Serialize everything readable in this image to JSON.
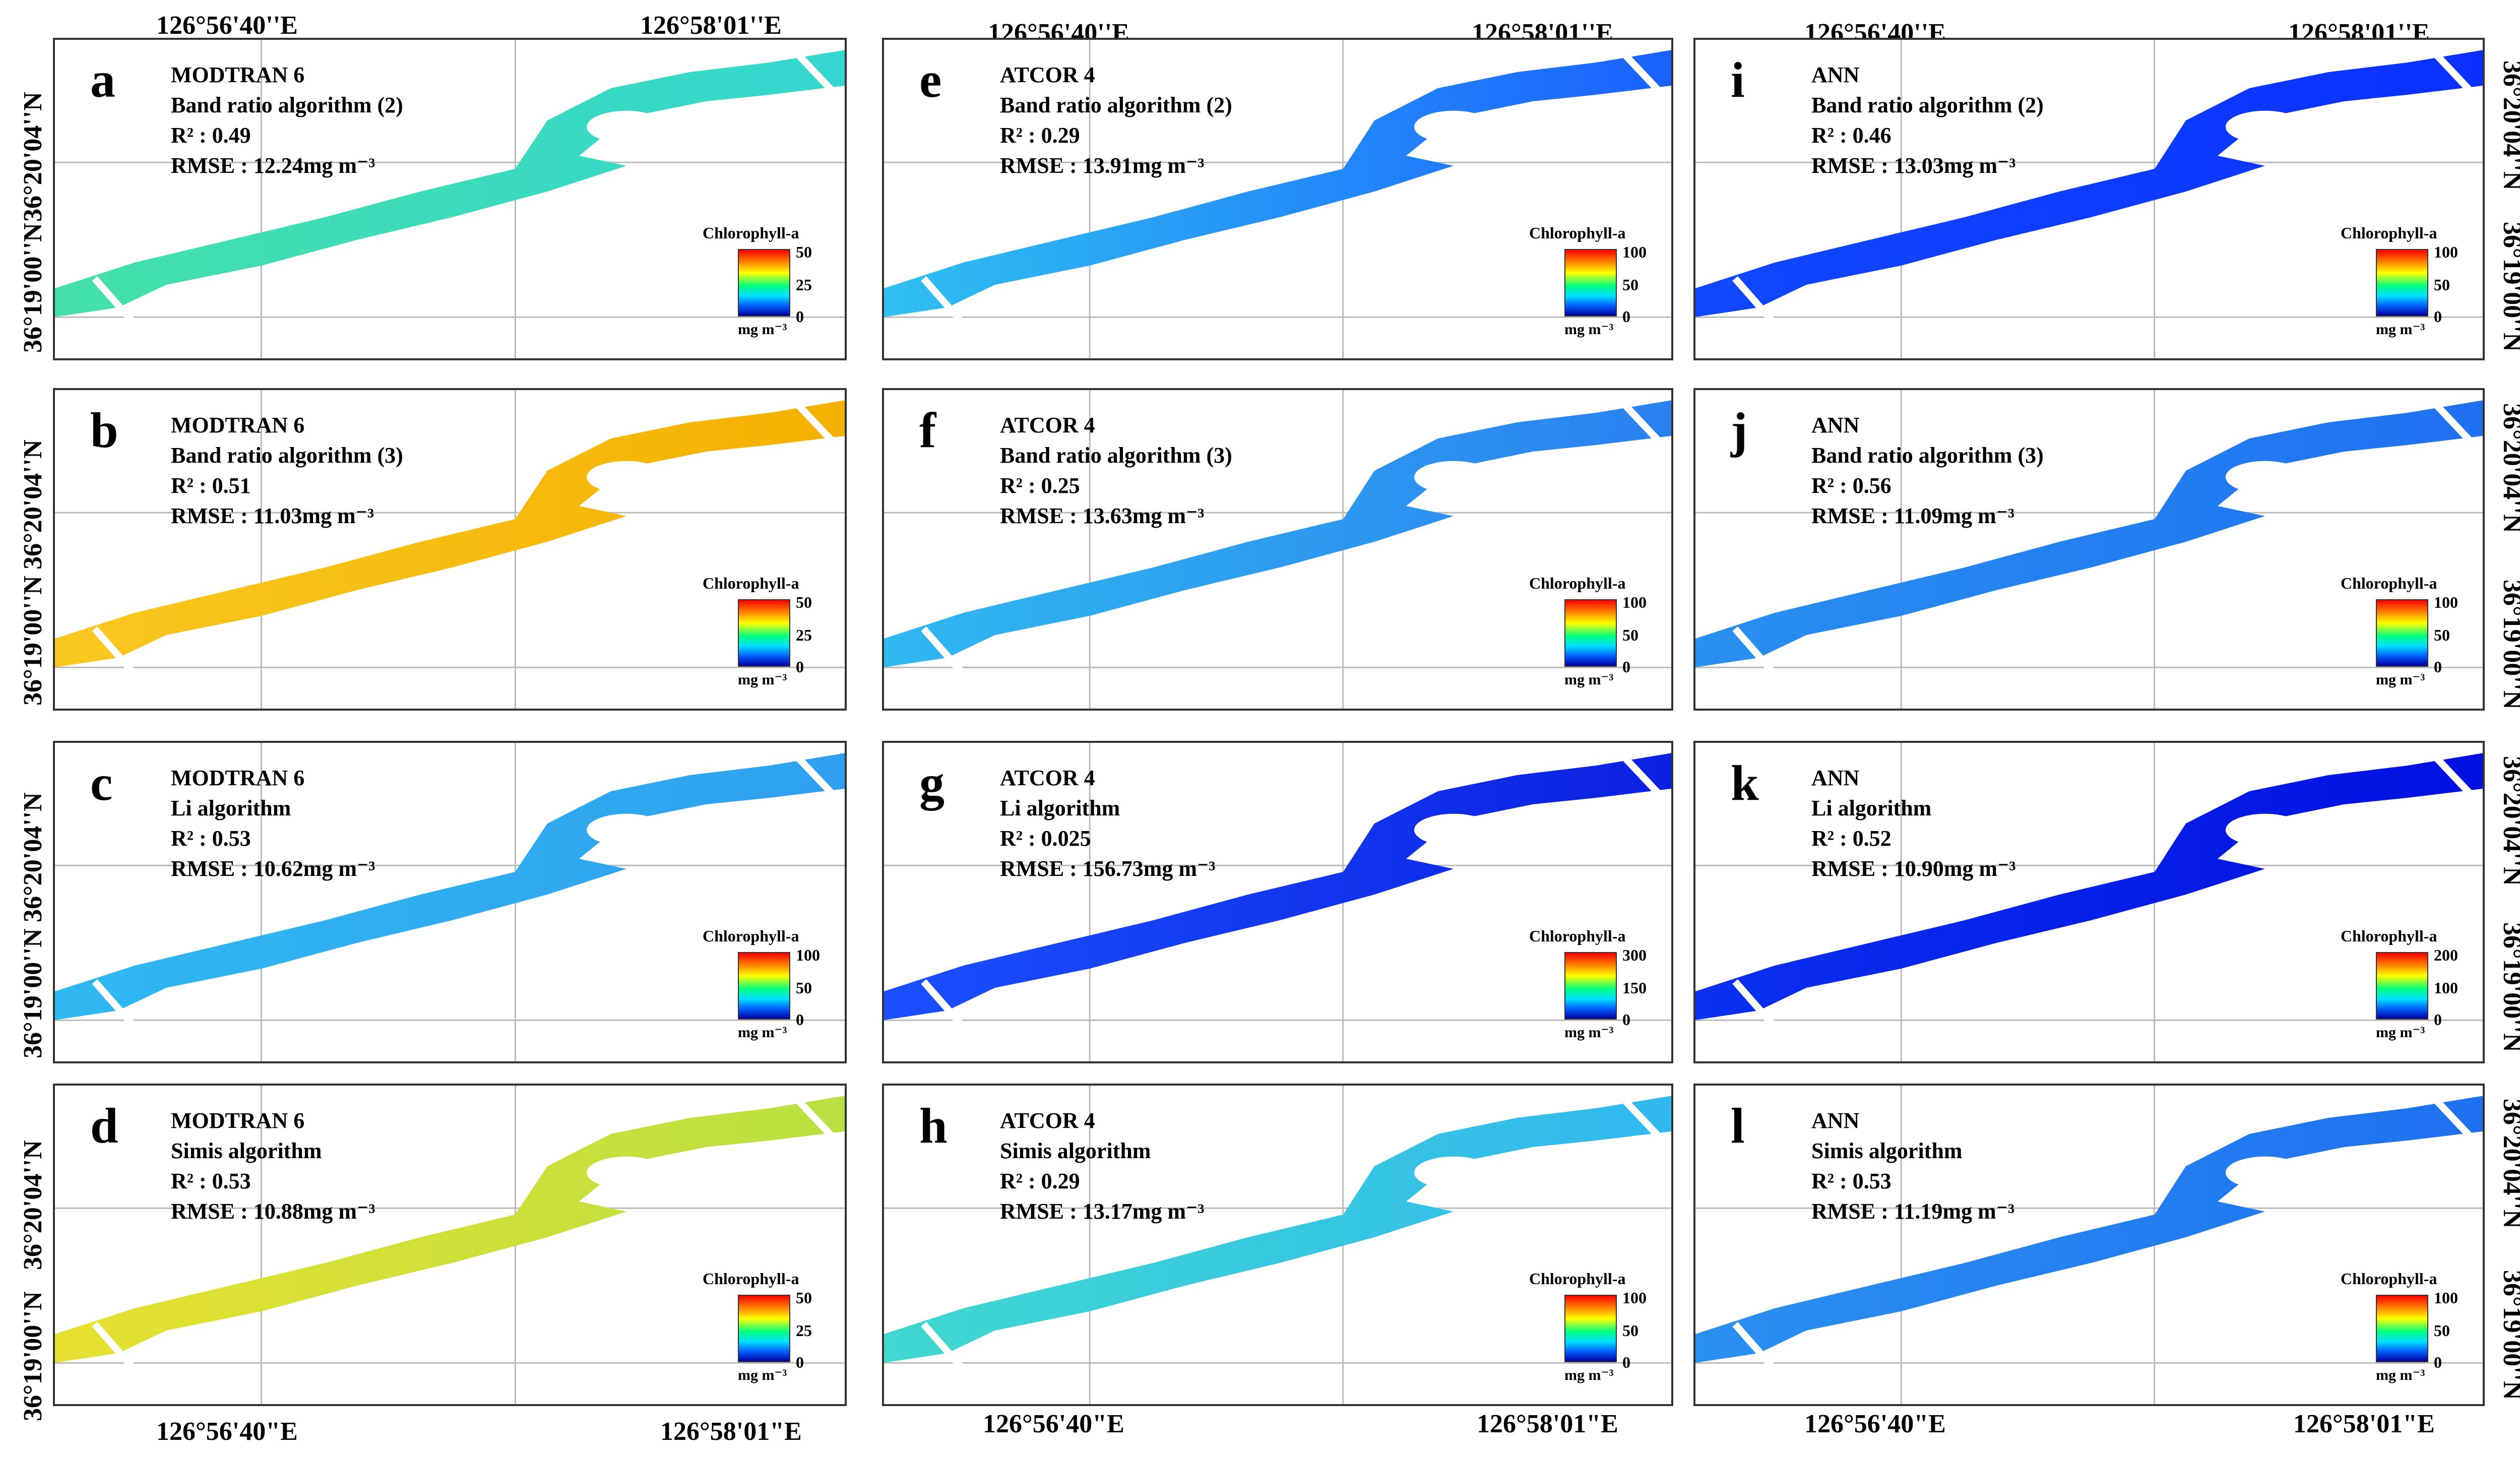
{
  "coords": {
    "lon_a": "126°56'40''E",
    "lon_b": "126°58'01''E",
    "lon_c": "126°56'40\"E",
    "lon_d": "126°58'01\"E",
    "lat_n": "36°20'04''N",
    "lat_s": "36°19'00''N"
  },
  "legend_title": "Chlorophyll-a",
  "legend_unit": "mg m⁻³",
  "colors": {
    "deep_blue": "#0a2bff",
    "blue": "#1f6fff",
    "cyan": "#2fb8f0",
    "green": "#3de0b0",
    "yellow": "#f0d020",
    "orange": "#f4a000"
  },
  "panels": [
    {
      "letter": "a",
      "method": "MODTRAN 6",
      "algo": "Band ratio algorithm (2)",
      "r2": "R² : 0.49",
      "rmse": "RMSE : 12.24mg m⁻³",
      "scale": [
        "50",
        "25",
        "0"
      ]
    },
    {
      "letter": "b",
      "method": "MODTRAN 6",
      "algo": "Band ratio algorithm (3)",
      "r2": "R² : 0.51",
      "rmse": "RMSE : 11.03mg m⁻³",
      "scale": [
        "50",
        "25",
        "0"
      ]
    },
    {
      "letter": "c",
      "method": "MODTRAN 6",
      "algo": "Li algorithm",
      "r2": "R² : 0.53",
      "rmse": "RMSE : 10.62mg m⁻³",
      "scale": [
        "100",
        "50",
        "0"
      ]
    },
    {
      "letter": "d",
      "method": "MODTRAN 6",
      "algo": "Simis algorithm",
      "r2": "R² : 0.53",
      "rmse": "RMSE : 10.88mg m⁻³",
      "scale": [
        "50",
        "25",
        "0"
      ]
    },
    {
      "letter": "e",
      "method": "ATCOR 4",
      "algo": "Band ratio algorithm (2)",
      "r2": "R² : 0.29",
      "rmse": "RMSE : 13.91mg m⁻³",
      "scale": [
        "100",
        "50",
        "0"
      ]
    },
    {
      "letter": "f",
      "method": "ATCOR 4",
      "algo": "Band ratio algorithm (3)",
      "r2": "R² : 0.25",
      "rmse": "RMSE : 13.63mg m⁻³",
      "scale": [
        "100",
        "50",
        "0"
      ]
    },
    {
      "letter": "g",
      "method": "ATCOR 4",
      "algo": "Li algorithm",
      "r2": "R² : 0.025",
      "rmse": "RMSE : 156.73mg m⁻³",
      "scale": [
        "300",
        "150",
        "0"
      ]
    },
    {
      "letter": "h",
      "method": "ATCOR 4",
      "algo": "Simis algorithm",
      "r2": "R² : 0.29",
      "rmse": "RMSE : 13.17mg m⁻³",
      "scale": [
        "100",
        "50",
        "0"
      ]
    },
    {
      "letter": "i",
      "method": "ANN",
      "algo": "Band ratio algorithm (2)",
      "r2": "R² : 0.46",
      "rmse": "RMSE : 13.03mg m⁻³",
      "scale": [
        "100",
        "50",
        "0"
      ]
    },
    {
      "letter": "j",
      "method": "ANN",
      "algo": "Band ratio algorithm (3)",
      "r2": "R² : 0.56",
      "rmse": "RMSE : 11.09mg m⁻³",
      "scale": [
        "100",
        "50",
        "0"
      ]
    },
    {
      "letter": "k",
      "method": "ANN",
      "algo": "Li algorithm",
      "r2": "R² : 0.52",
      "rmse": "RMSE : 10.90mg m⁻³",
      "scale": [
        "200",
        "100",
        "0"
      ]
    },
    {
      "letter": "l",
      "method": "ANN",
      "algo": "Simis algorithm",
      "r2": "R² : 0.53",
      "rmse": "RMSE : 11.19mg m⁻³",
      "scale": [
        "100",
        "50",
        "0"
      ]
    }
  ]
}
